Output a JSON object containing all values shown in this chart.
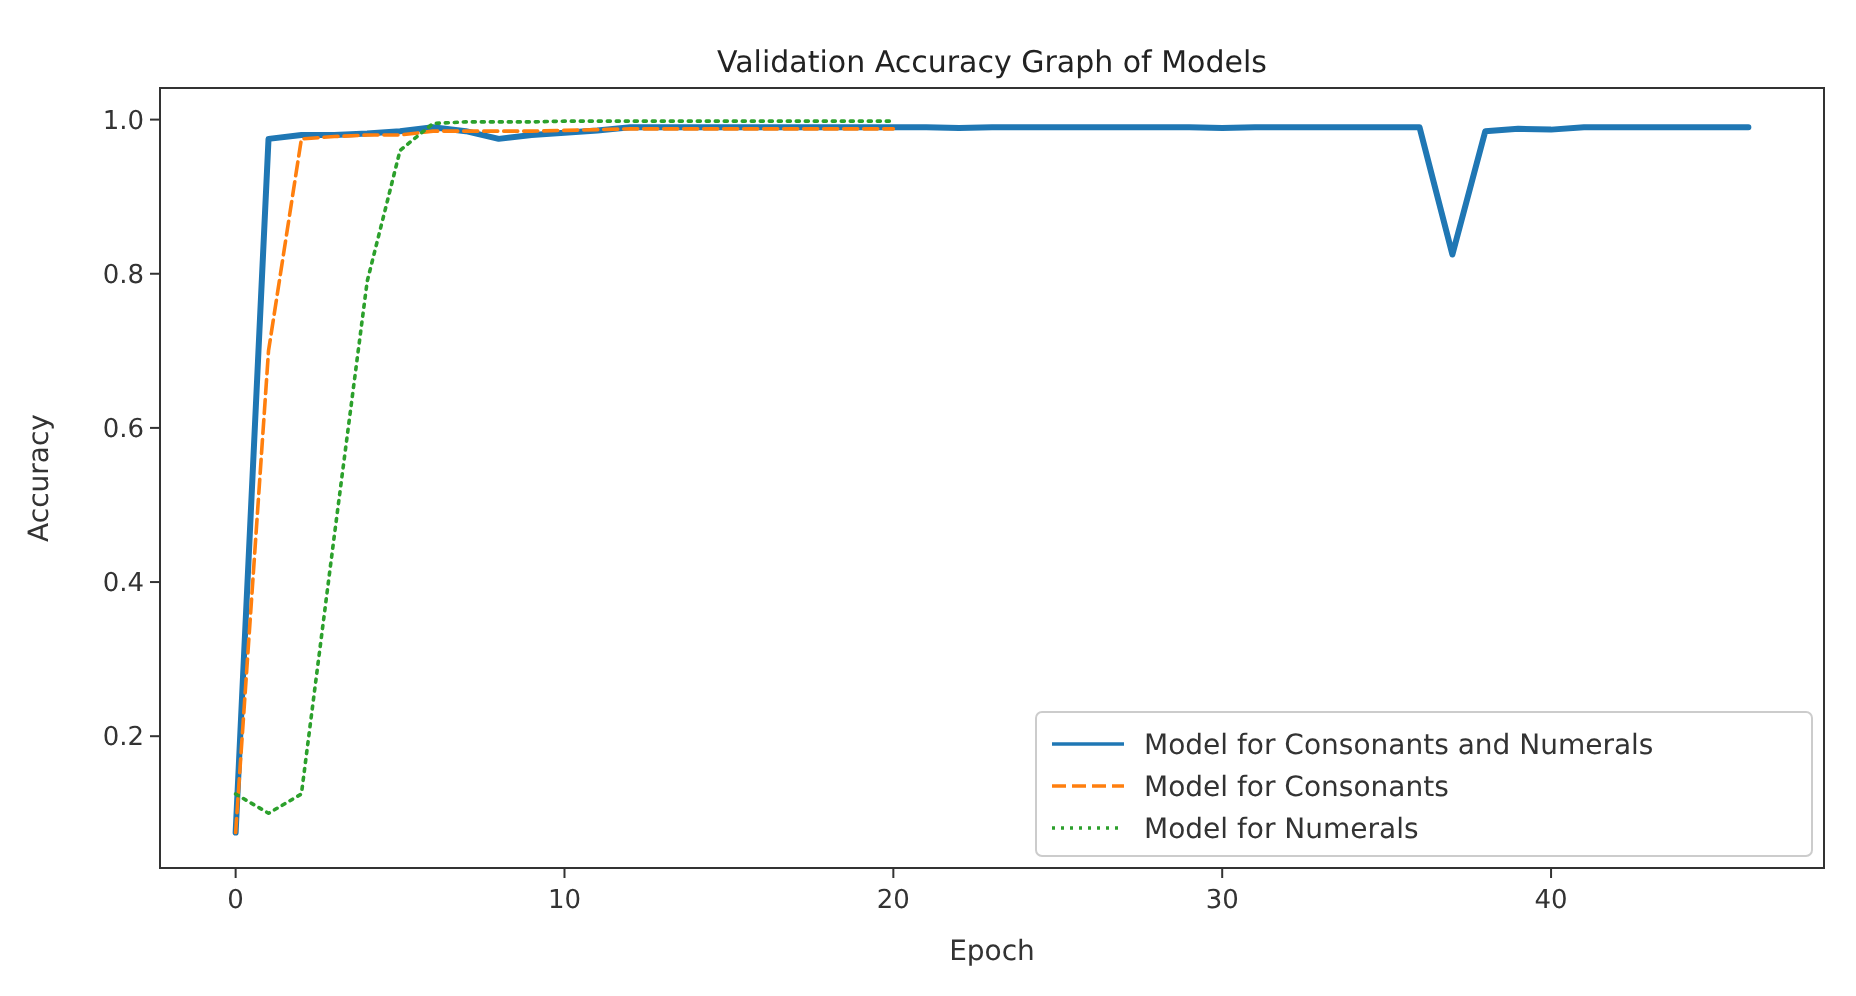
{
  "chart_data": {
    "type": "line",
    "title": "Validation Accuracy Graph of Models",
    "xlabel": "Epoch",
    "ylabel": "Accuracy",
    "xlim": [
      -2.3,
      48.3
    ],
    "xticks": [
      0,
      10,
      20,
      30,
      40
    ],
    "ylim": [
      0.029,
      1.041
    ],
    "yticks": [
      0.2,
      0.4,
      0.6,
      0.8,
      {
        "value": 1,
        "label": "1.0"
      }
    ],
    "legend": "bottom right",
    "grid": false,
    "series": [
      {
        "name": "Model for Consonants and Numerals",
        "color": "#1f77b4",
        "line_style": "solid",
        "x": [
          0,
          1,
          2,
          3,
          4,
          5,
          6,
          7,
          8,
          9,
          10,
          11,
          12,
          13,
          14,
          15,
          16,
          17,
          18,
          19,
          20,
          21,
          22,
          23,
          24,
          25,
          26,
          27,
          28,
          29,
          30,
          31,
          32,
          33,
          34,
          35,
          36,
          37,
          38,
          39,
          40,
          41,
          42,
          43,
          44,
          45,
          46
        ],
        "values": [
          0.075,
          0.975,
          0.98,
          0.98,
          0.982,
          0.985,
          0.99,
          0.985,
          0.975,
          0.98,
          0.983,
          0.986,
          0.99,
          0.99,
          0.99,
          0.99,
          0.99,
          0.99,
          0.99,
          0.99,
          0.99,
          0.99,
          0.989,
          0.99,
          0.99,
          0.99,
          0.99,
          0.99,
          0.99,
          0.99,
          0.989,
          0.99,
          0.99,
          0.99,
          0.99,
          0.99,
          0.99,
          0.825,
          0.985,
          0.988,
          0.987,
          0.99,
          0.99,
          0.99,
          0.99,
          0.99,
          0.99
        ]
      },
      {
        "name": "Model for Consonants",
        "color": "#ff7f0e",
        "line_style": "dashed",
        "x": [
          0,
          1,
          2,
          3,
          4,
          5,
          6,
          7,
          8,
          9,
          10,
          11,
          12,
          13,
          14,
          15,
          16,
          17,
          18,
          19,
          20
        ],
        "values": [
          0.075,
          0.7,
          0.975,
          0.978,
          0.98,
          0.98,
          0.985,
          0.985,
          0.985,
          0.985,
          0.986,
          0.987,
          0.988,
          0.988,
          0.988,
          0.988,
          0.988,
          0.988,
          0.988,
          0.988,
          0.988
        ]
      },
      {
        "name": "Model for Numerals",
        "color": "#2ca02c",
        "line_style": "dotted",
        "x": [
          0,
          1,
          2,
          3,
          4,
          5,
          6,
          7,
          8,
          9,
          10,
          11,
          12,
          13,
          14,
          15,
          16,
          17,
          18,
          19,
          20
        ],
        "values": [
          0.125,
          0.1,
          0.125,
          0.46,
          0.79,
          0.96,
          0.995,
          0.997,
          0.997,
          0.997,
          0.998,
          0.998,
          0.998,
          0.998,
          0.998,
          0.998,
          0.998,
          0.998,
          0.998,
          0.998,
          0.998
        ]
      }
    ]
  }
}
